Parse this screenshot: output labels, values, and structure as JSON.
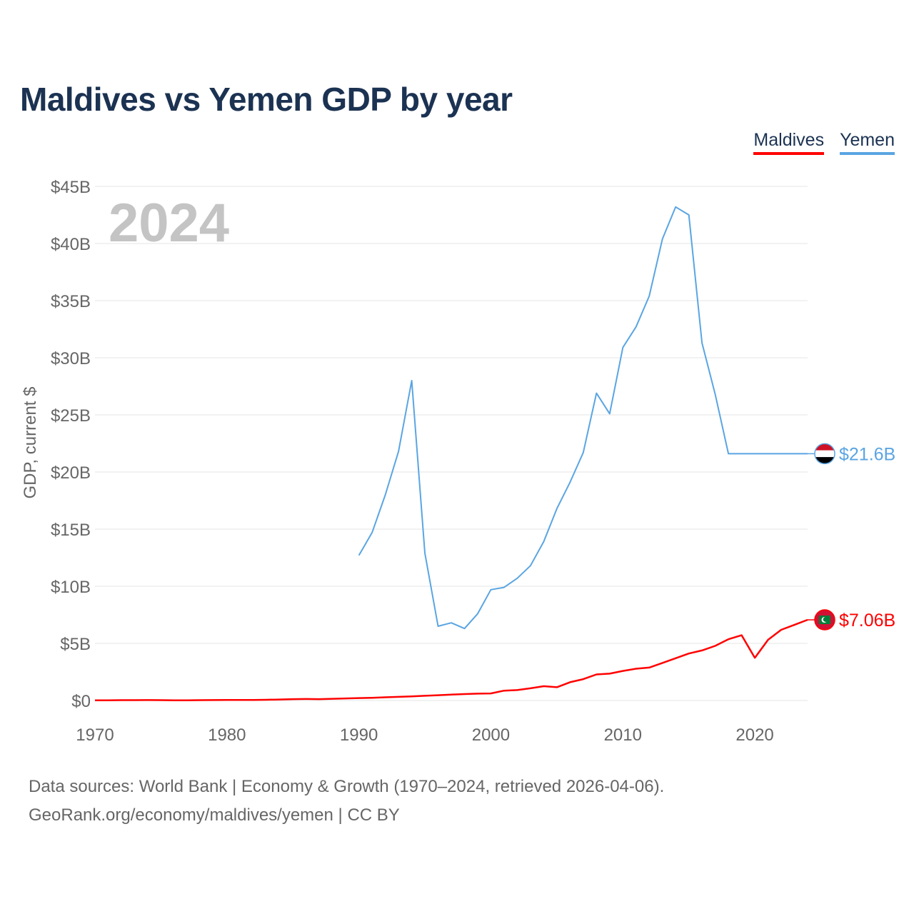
{
  "header": {
    "title": "Maldives vs Yemen GDP by year"
  },
  "legend": [
    {
      "name": "Maldives"
    },
    {
      "name": "Yemen"
    }
  ],
  "footer": {
    "source_line1": "Data sources: World Bank | Economy & Growth (1970–2024, retrieved 2026-04-06).",
    "source_line2": "GeoRank.org/economy/maldives/yemen | CC BY"
  },
  "colors": {
    "maldives": "#ff0000",
    "yemen": "#5aa5e2",
    "year_watermark": "#c4c4c4",
    "grid": "#e6e6e6",
    "tick_text": "#666666"
  },
  "chart_data": {
    "type": "line",
    "title": "Maldives vs Yemen GDP by year",
    "xlabel": "",
    "ylabel": "GDP, current $",
    "xlim": [
      1970,
      2024
    ],
    "ylim": [
      0,
      45
    ],
    "y_unit": "billions USD",
    "year_label": "2024",
    "x_ticks": [
      {
        "value": 1970,
        "label": "1970"
      },
      {
        "value": 1980,
        "label": "1980"
      },
      {
        "value": 1990,
        "label": "1990"
      },
      {
        "value": 2000,
        "label": "2000"
      },
      {
        "value": 2010,
        "label": "2010"
      },
      {
        "value": 2020,
        "label": "2020"
      }
    ],
    "y_ticks": [
      {
        "value": 0,
        "label": "$0"
      },
      {
        "value": 5,
        "label": "$5B"
      },
      {
        "value": 10,
        "label": "$10B"
      },
      {
        "value": 15,
        "label": "$15B"
      },
      {
        "value": 20,
        "label": "$20B"
      },
      {
        "value": 25,
        "label": "$25B"
      },
      {
        "value": 30,
        "label": "$30B"
      },
      {
        "value": 35,
        "label": "$35B"
      },
      {
        "value": 40,
        "label": "$40B"
      },
      {
        "value": 45,
        "label": "$45B"
      }
    ],
    "grid": true,
    "legend_position": "top-right",
    "series": [
      {
        "name": "Maldives",
        "color": "#ff0000",
        "end_label": "$7.06B",
        "flag": "maldives-flag-icon",
        "points": [
          [
            1970,
            0.02
          ],
          [
            1971,
            0.02
          ],
          [
            1972,
            0.03
          ],
          [
            1973,
            0.03
          ],
          [
            1974,
            0.04
          ],
          [
            1975,
            0.03
          ],
          [
            1976,
            0.02
          ],
          [
            1977,
            0.02
          ],
          [
            1978,
            0.03
          ],
          [
            1979,
            0.04
          ],
          [
            1980,
            0.05
          ],
          [
            1981,
            0.05
          ],
          [
            1982,
            0.05
          ],
          [
            1983,
            0.06
          ],
          [
            1984,
            0.09
          ],
          [
            1985,
            0.12
          ],
          [
            1986,
            0.13
          ],
          [
            1987,
            0.12
          ],
          [
            1988,
            0.15
          ],
          [
            1989,
            0.18
          ],
          [
            1990,
            0.21
          ],
          [
            1991,
            0.24
          ],
          [
            1992,
            0.28
          ],
          [
            1993,
            0.32
          ],
          [
            1994,
            0.36
          ],
          [
            1995,
            0.41
          ],
          [
            1996,
            0.46
          ],
          [
            1997,
            0.52
          ],
          [
            1998,
            0.56
          ],
          [
            1999,
            0.6
          ],
          [
            2000,
            0.62
          ],
          [
            2001,
            0.86
          ],
          [
            2002,
            0.91
          ],
          [
            2003,
            1.07
          ],
          [
            2004,
            1.25
          ],
          [
            2005,
            1.16
          ],
          [
            2006,
            1.6
          ],
          [
            2007,
            1.87
          ],
          [
            2008,
            2.28
          ],
          [
            2009,
            2.35
          ],
          [
            2010,
            2.59
          ],
          [
            2011,
            2.78
          ],
          [
            2012,
            2.88
          ],
          [
            2013,
            3.29
          ],
          [
            2014,
            3.7
          ],
          [
            2015,
            4.11
          ],
          [
            2016,
            4.38
          ],
          [
            2017,
            4.78
          ],
          [
            2018,
            5.36
          ],
          [
            2019,
            5.71
          ],
          [
            2020,
            3.74
          ],
          [
            2021,
            5.31
          ],
          [
            2022,
            6.19
          ],
          [
            2023,
            6.62
          ],
          [
            2024,
            7.06
          ]
        ]
      },
      {
        "name": "Yemen",
        "color": "#5aa5e2",
        "end_label": "$21.6B",
        "flag": "yemen-flag-icon",
        "points": [
          [
            1990,
            12.7
          ],
          [
            1991,
            14.7
          ],
          [
            1992,
            18.0
          ],
          [
            1993,
            21.8
          ],
          [
            1994,
            28.0
          ],
          [
            1995,
            12.9
          ],
          [
            1996,
            6.5
          ],
          [
            1997,
            6.8
          ],
          [
            1998,
            6.3
          ],
          [
            1999,
            7.6
          ],
          [
            2000,
            9.7
          ],
          [
            2001,
            9.9
          ],
          [
            2002,
            10.7
          ],
          [
            2003,
            11.8
          ],
          [
            2004,
            13.9
          ],
          [
            2005,
            16.8
          ],
          [
            2006,
            19.1
          ],
          [
            2007,
            21.7
          ],
          [
            2008,
            26.9
          ],
          [
            2009,
            25.1
          ],
          [
            2010,
            30.9
          ],
          [
            2011,
            32.7
          ],
          [
            2012,
            35.4
          ],
          [
            2013,
            40.4
          ],
          [
            2014,
            43.2
          ],
          [
            2015,
            42.5
          ],
          [
            2016,
            31.3
          ],
          [
            2017,
            26.8
          ],
          [
            2018,
            21.6
          ],
          [
            2019,
            21.6
          ],
          [
            2020,
            21.6
          ],
          [
            2021,
            21.6
          ],
          [
            2022,
            21.6
          ],
          [
            2023,
            21.6
          ],
          [
            2024,
            21.6
          ]
        ]
      }
    ]
  }
}
